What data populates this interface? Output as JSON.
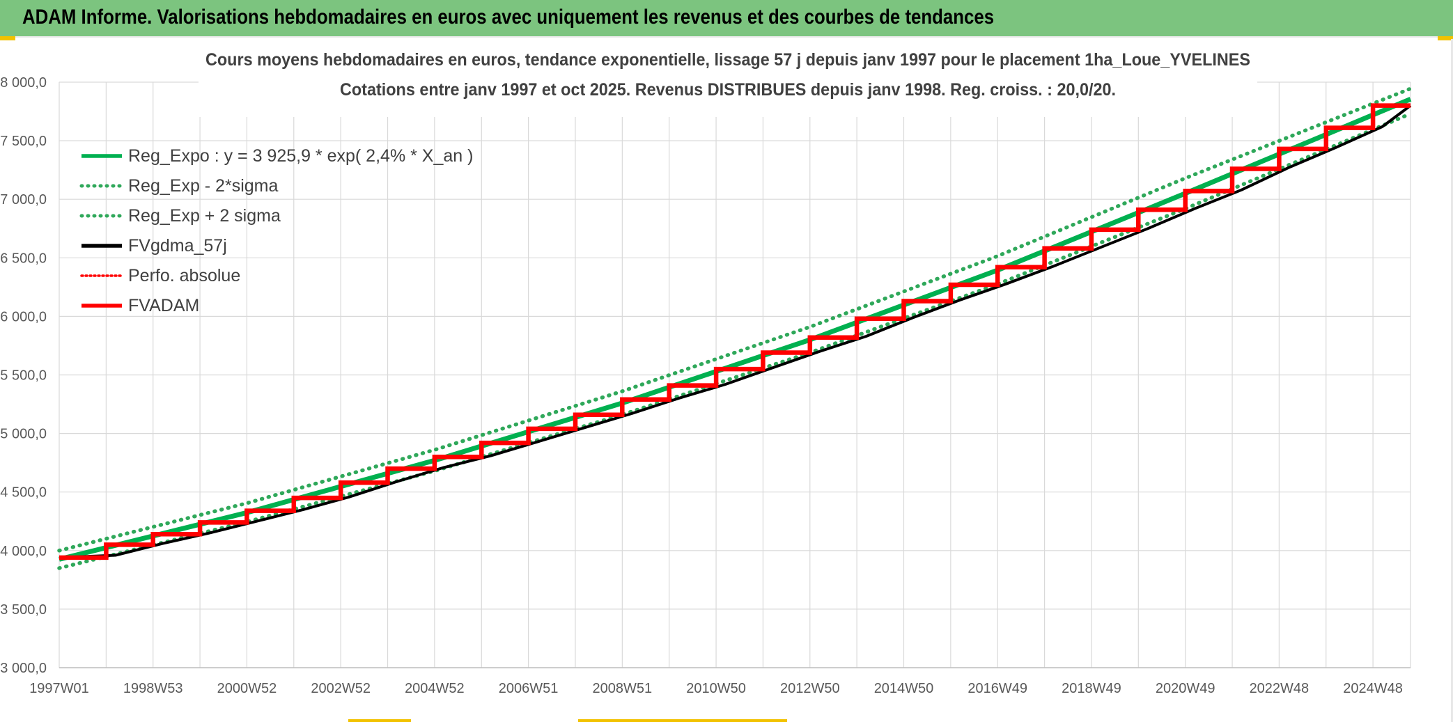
{
  "header": {
    "title": "ADAM Informe. Valorisations hebdomadaires en euros avec uniquement les revenus et des courbes de tendances"
  },
  "colors": {
    "header_bg": "#7cc47f",
    "green": "#00b050",
    "dotted_green": "#2fa85a",
    "black": "#000000",
    "red": "#ff0000",
    "grid": "#d9d9d9"
  },
  "chart_data": {
    "type": "line",
    "title_line1": "Cours moyens hebdomadaires en euros, tendance exponentielle, lissage 57 j depuis janv 1997 pour le placement 1ha_Loue_YVELINES",
    "title_line2": "Cotations entre janv 1997 et oct 2025. Revenus DISTRIBUES depuis janv 1998. Reg. croiss. : 20,0/20.",
    "xlabel": "",
    "ylabel": "",
    "ylim": [
      3000,
      8000
    ],
    "yticks": [
      "8 000,0",
      "7 500,0",
      "7 000,0",
      "6 500,0",
      "6 000,0",
      "5 500,0",
      "5 000,0",
      "4 500,0",
      "4 000,0",
      "3 500,0",
      "3 000,0"
    ],
    "ytick_values": [
      8000,
      7500,
      7000,
      6500,
      6000,
      5500,
      5000,
      4500,
      4000,
      3500,
      3000
    ],
    "xlim": [
      1997.0,
      2025.8
    ],
    "xtick_labels": [
      "1997W01",
      "1998W53",
      "2000W52",
      "2002W52",
      "2004W52",
      "2006W51",
      "2008W51",
      "2010W50",
      "2012W50",
      "2014W50",
      "2016W49",
      "2018W49",
      "2020W49",
      "2022W48",
      "2024W48"
    ],
    "xtick_years": [
      1997.0,
      1999.0,
      2001.0,
      2003.0,
      2005.0,
      2007.0,
      2009.0,
      2011.0,
      2013.0,
      2015.0,
      2017.0,
      2019.0,
      2021.0,
      2023.0,
      2025.0
    ],
    "grid": true,
    "legend_position": "top-left",
    "legend": [
      {
        "label": "Reg_Expo : y = 3 925,9 * exp( 2,4% *  X_an )",
        "color": "#00b050",
        "style": "solid"
      },
      {
        "label": "Reg_Exp - 2*sigma",
        "color": "#2fa85a",
        "style": "dotted"
      },
      {
        "label": "Reg_Exp + 2 sigma",
        "color": "#2fa85a",
        "style": "dotted"
      },
      {
        "label": "FVgdma_57j",
        "color": "#000000",
        "style": "solid"
      },
      {
        "label": "Perfo. absolue",
        "color": "#ff0000",
        "style": "dotted"
      },
      {
        "label": "FVADAM",
        "color": "#ff0000",
        "style": "solid"
      }
    ],
    "series": [
      {
        "name": "Reg_Expo : y = 3 925,9 * exp( 2,4% *  X_an )",
        "x": [
          1997.0,
          2001.0,
          2005.0,
          2009.0,
          2013.0,
          2017.0,
          2021.0,
          2025.8
        ],
        "y": [
          3925.9,
          4324,
          4770,
          5260,
          5800,
          6395,
          7050,
          7855
        ]
      },
      {
        "name": "Reg_Exp - 2*sigma",
        "x": [
          1997.0,
          2001.0,
          2005.0,
          2009.0,
          2013.0,
          2017.0,
          2021.0,
          2025.8
        ],
        "y": [
          3850,
          4245,
          4680,
          5160,
          5690,
          6275,
          6920,
          7730
        ]
      },
      {
        "name": "Reg_Exp + 2 sigma",
        "x": [
          1997.0,
          2001.0,
          2005.0,
          2009.0,
          2013.0,
          2017.0,
          2021.0,
          2025.8
        ],
        "y": [
          4000,
          4405,
          4860,
          5360,
          5910,
          6515,
          7180,
          7945
        ]
      },
      {
        "name": "FVADAM",
        "x": [
          1997.0,
          1998.0,
          1998.0,
          1999.0,
          1999.0,
          2000.0,
          2000.0,
          2001.0,
          2001.0,
          2002.0,
          2002.0,
          2003.0,
          2003.0,
          2004.0,
          2004.0,
          2005.0,
          2005.0,
          2006.0,
          2006.0,
          2007.0,
          2007.0,
          2008.0,
          2008.0,
          2009.0,
          2009.0,
          2010.0,
          2010.0,
          2011.0,
          2011.0,
          2012.0,
          2012.0,
          2013.0,
          2013.0,
          2014.0,
          2014.0,
          2015.0,
          2015.0,
          2016.0,
          2016.0,
          2017.0,
          2017.0,
          2018.0,
          2018.0,
          2019.0,
          2019.0,
          2020.0,
          2020.0,
          2021.0,
          2021.0,
          2022.0,
          2022.0,
          2023.0,
          2023.0,
          2024.0,
          2024.0,
          2025.0,
          2025.0,
          2025.8
        ],
        "y": [
          3940,
          3940,
          4050,
          4050,
          4140,
          4140,
          4240,
          4240,
          4340,
          4340,
          4450,
          4450,
          4580,
          4580,
          4700,
          4700,
          4800,
          4800,
          4920,
          4920,
          5040,
          5040,
          5160,
          5160,
          5290,
          5290,
          5410,
          5410,
          5550,
          5550,
          5690,
          5690,
          5820,
          5820,
          5980,
          5980,
          6130,
          6130,
          6270,
          6270,
          6420,
          6420,
          6580,
          6580,
          6740,
          6740,
          6910,
          6910,
          7070,
          7070,
          7260,
          7260,
          7430,
          7430,
          7610,
          7610,
          7800,
          7800
        ]
      },
      {
        "name": "FVgdma_57j",
        "x": [
          1997.0,
          1998.2,
          1999.2,
          2000.2,
          2001.2,
          2002.2,
          2003.2,
          2004.2,
          2005.2,
          2006.2,
          2007.2,
          2008.2,
          2009.2,
          2010.2,
          2011.2,
          2012.2,
          2013.2,
          2014.2,
          2015.2,
          2016.2,
          2017.2,
          2018.2,
          2019.2,
          2020.2,
          2021.2,
          2022.2,
          2023.2,
          2024.2,
          2025.2,
          2025.8
        ],
        "y": [
          3940,
          3960,
          4060,
          4150,
          4250,
          4350,
          4460,
          4590,
          4710,
          4810,
          4930,
          5050,
          5170,
          5300,
          5420,
          5560,
          5700,
          5830,
          5990,
          6140,
          6280,
          6430,
          6590,
          6750,
          6920,
          7080,
          7270,
          7440,
          7620,
          7800
        ]
      }
    ]
  }
}
